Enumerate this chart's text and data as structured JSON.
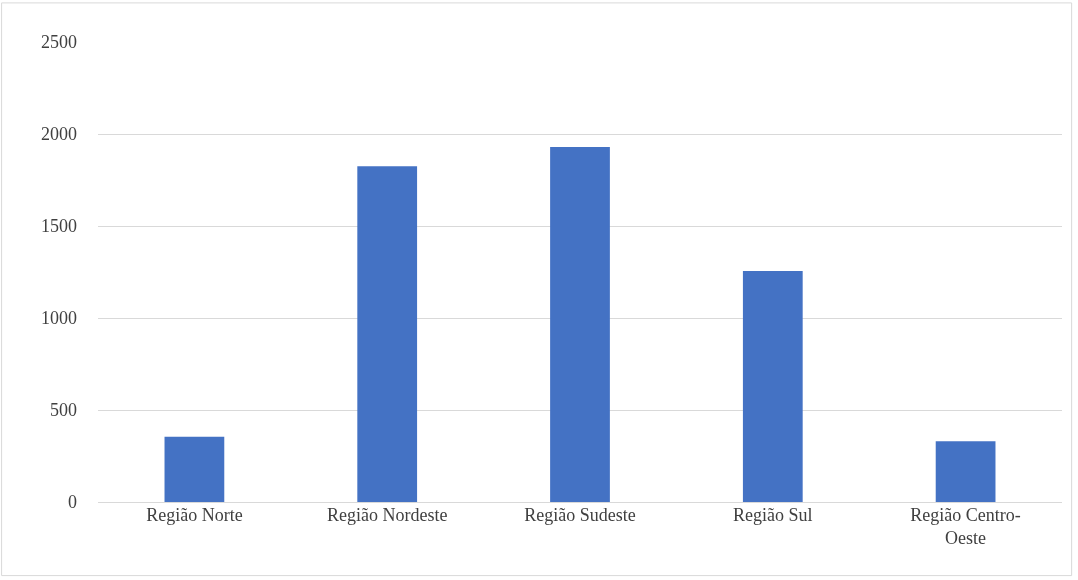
{
  "chart_data": {
    "type": "bar",
    "categories": [
      "Região Norte",
      "Região Nordeste",
      "Região Sudeste",
      "Região Sul",
      "Região Centro-Oeste"
    ],
    "values": [
      355,
      1825,
      1930,
      1255,
      330
    ],
    "color": "#4472c4",
    "ylim": [
      0,
      2500
    ],
    "yticks": [
      0,
      500,
      1000,
      1500,
      2000,
      2500
    ],
    "grid": "y"
  }
}
